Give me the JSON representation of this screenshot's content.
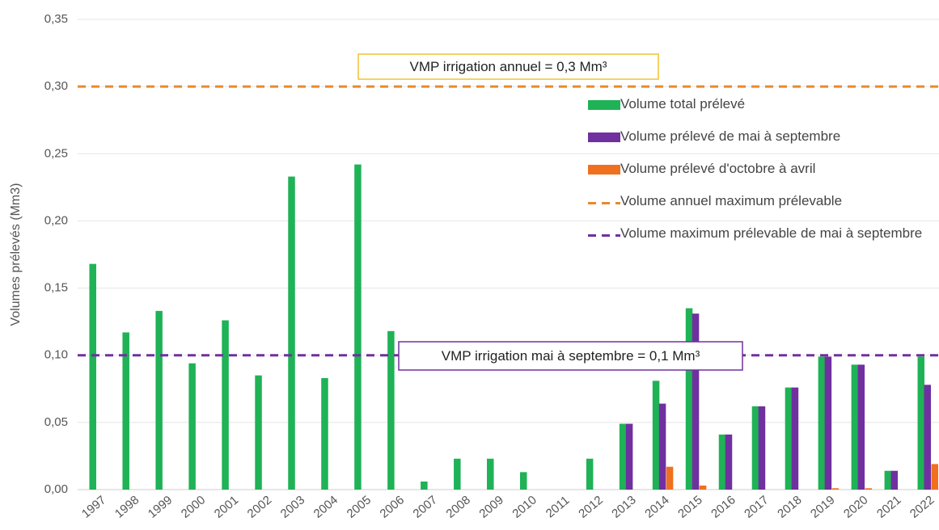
{
  "chart_data": {
    "type": "bar",
    "y_label": "Volumes prélevés (Mm3)",
    "categories": [
      "1997",
      "1998",
      "1999",
      "2000",
      "2001",
      "2002",
      "2003",
      "2004",
      "2005",
      "2006",
      "2007",
      "2008",
      "2009",
      "2010",
      "2011",
      "2012",
      "2013",
      "2014",
      "2015",
      "2016",
      "2017",
      "2018",
      "2019",
      "2020",
      "2021",
      "2022"
    ],
    "series": [
      {
        "name": "Volume total prélevé",
        "color": "#1fb256",
        "values": [
          0.168,
          0.117,
          0.133,
          0.094,
          0.126,
          0.085,
          0.233,
          0.083,
          0.242,
          0.118,
          0.006,
          0.023,
          0.023,
          0.013,
          0,
          0.023,
          0.049,
          0.081,
          0.135,
          0.041,
          0.062,
          0.076,
          0.099,
          0.093,
          0.014,
          0.099
        ]
      },
      {
        "name": "Volume prélevé de mai à septembre",
        "color": "#7030a0",
        "values": [
          null,
          null,
          null,
          null,
          null,
          null,
          null,
          null,
          null,
          null,
          null,
          null,
          null,
          null,
          null,
          null,
          0.049,
          0.064,
          0.131,
          0.041,
          0.062,
          0.076,
          0.099,
          0.093,
          0.014,
          0.078
        ]
      },
      {
        "name": "Volume prélevé d'octobre à avril",
        "color": "#f07020",
        "values": [
          null,
          null,
          null,
          null,
          null,
          null,
          null,
          null,
          null,
          null,
          null,
          null,
          null,
          null,
          null,
          null,
          0,
          0.017,
          0.003,
          0,
          0,
          0,
          0.001,
          0.001,
          0,
          0.019
        ]
      }
    ],
    "reference_lines": [
      {
        "name": "Volume annuel maximum prélevable",
        "color": "#e8892b",
        "value": 0.3,
        "annotation": "VMP irrigation annuel = 0,3 Mm³",
        "box_color": "#f2c230"
      },
      {
        "name": "Volume maximum prélevable de mai à septembre",
        "color": "#7030a0",
        "value": 0.1,
        "annotation": "VMP irrigation mai à septembre = 0,1 Mm³",
        "box_color": "#7030a0"
      }
    ],
    "ylim": [
      0,
      0.35
    ],
    "yticks": [
      {
        "value": 0,
        "label": "0,00"
      },
      {
        "value": 0.05,
        "label": "0,05"
      },
      {
        "value": 0.1,
        "label": "0,10"
      },
      {
        "value": 0.15,
        "label": "0,15"
      },
      {
        "value": 0.2,
        "label": "0,20"
      },
      {
        "value": 0.25,
        "label": "0,25"
      },
      {
        "value": 0.3,
        "label": "0,30"
      },
      {
        "value": 0.35,
        "label": "0,35"
      }
    ],
    "grid": true
  }
}
